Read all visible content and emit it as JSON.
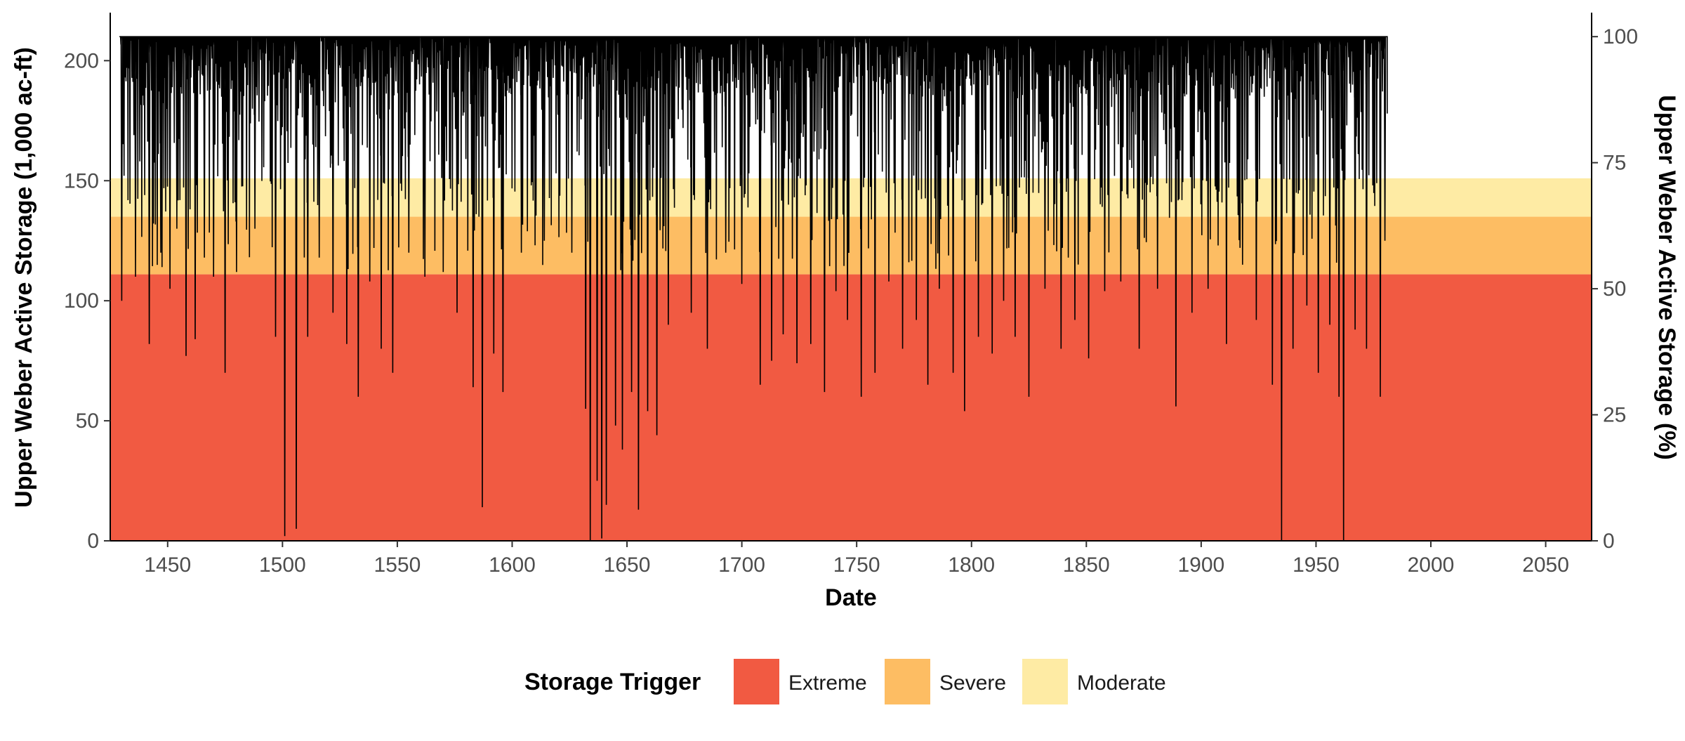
{
  "chart_data": {
    "type": "area",
    "xlabel": "Date",
    "ylabel": "Upper Weber Active Storage (1,000 ac-ft)",
    "y2label": "Upper Weber Active Storage (%)",
    "xlim": [
      1425,
      2070
    ],
    "ylim": [
      0,
      220
    ],
    "y2lim": [
      0,
      104.76
    ],
    "x_ticks": [
      1450,
      1500,
      1550,
      1600,
      1650,
      1700,
      1750,
      1800,
      1850,
      1900,
      1950,
      2000,
      2050
    ],
    "y_ticks": [
      0,
      50,
      100,
      150,
      200
    ],
    "y2_ticks": [
      0,
      25,
      50,
      75,
      100
    ],
    "grid": false,
    "legend_position": "bottom",
    "legend": {
      "title": "Storage Trigger",
      "items": [
        {
          "label": "Extreme",
          "color": "#F15A42"
        },
        {
          "label": "Severe",
          "color": "#FDBD63"
        },
        {
          "label": "Moderate",
          "color": "#FEEBA4"
        }
      ]
    },
    "bands": [
      {
        "name": "Extreme",
        "from": 0,
        "to": 111,
        "color": "#F15A42"
      },
      {
        "name": "Severe",
        "from": 111,
        "to": 135,
        "color": "#FDBD63"
      },
      {
        "name": "Moderate",
        "from": 135,
        "to": 151,
        "color": "#FEEBA4"
      }
    ],
    "series": [
      {
        "type": "line",
        "color": "#000000",
        "x_range": [
          1429,
          1981
        ],
        "max_value": 210,
        "troughs": [
          {
            "x": 1430,
            "y": 100
          },
          {
            "x": 1436,
            "y": 110
          },
          {
            "x": 1442,
            "y": 82
          },
          {
            "x": 1447,
            "y": 120
          },
          {
            "x": 1451,
            "y": 105
          },
          {
            "x": 1454,
            "y": 130
          },
          {
            "x": 1458,
            "y": 77
          },
          {
            "x": 1462,
            "y": 84
          },
          {
            "x": 1466,
            "y": 118
          },
          {
            "x": 1470,
            "y": 110
          },
          {
            "x": 1475,
            "y": 70
          },
          {
            "x": 1480,
            "y": 112
          },
          {
            "x": 1488,
            "y": 130
          },
          {
            "x": 1497,
            "y": 85
          },
          {
            "x": 1501,
            "y": 2
          },
          {
            "x": 1506,
            "y": 5
          },
          {
            "x": 1511,
            "y": 85
          },
          {
            "x": 1516,
            "y": 118
          },
          {
            "x": 1522,
            "y": 95
          },
          {
            "x": 1528,
            "y": 82
          },
          {
            "x": 1533,
            "y": 60
          },
          {
            "x": 1538,
            "y": 108
          },
          {
            "x": 1543,
            "y": 80
          },
          {
            "x": 1548,
            "y": 70
          },
          {
            "x": 1555,
            "y": 120
          },
          {
            "x": 1562,
            "y": 110
          },
          {
            "x": 1570,
            "y": 112
          },
          {
            "x": 1576,
            "y": 95
          },
          {
            "x": 1583,
            "y": 64
          },
          {
            "x": 1587,
            "y": 14
          },
          {
            "x": 1592,
            "y": 78
          },
          {
            "x": 1596,
            "y": 62
          },
          {
            "x": 1604,
            "y": 120
          },
          {
            "x": 1614,
            "y": 125
          },
          {
            "x": 1626,
            "y": 120
          },
          {
            "x": 1632,
            "y": 55
          },
          {
            "x": 1634,
            "y": 0
          },
          {
            "x": 1637,
            "y": 25
          },
          {
            "x": 1639,
            "y": 1
          },
          {
            "x": 1641,
            "y": 15
          },
          {
            "x": 1645,
            "y": 48
          },
          {
            "x": 1648,
            "y": 38
          },
          {
            "x": 1652,
            "y": 62
          },
          {
            "x": 1655,
            "y": 13
          },
          {
            "x": 1659,
            "y": 54
          },
          {
            "x": 1663,
            "y": 44
          },
          {
            "x": 1668,
            "y": 90
          },
          {
            "x": 1678,
            "y": 95
          },
          {
            "x": 1685,
            "y": 80
          },
          {
            "x": 1693,
            "y": 120
          },
          {
            "x": 1700,
            "y": 107
          },
          {
            "x": 1708,
            "y": 65
          },
          {
            "x": 1713,
            "y": 75
          },
          {
            "x": 1718,
            "y": 86
          },
          {
            "x": 1724,
            "y": 74
          },
          {
            "x": 1730,
            "y": 82
          },
          {
            "x": 1736,
            "y": 62
          },
          {
            "x": 1741,
            "y": 104
          },
          {
            "x": 1746,
            "y": 92
          },
          {
            "x": 1752,
            "y": 60
          },
          {
            "x": 1758,
            "y": 70
          },
          {
            "x": 1764,
            "y": 108
          },
          {
            "x": 1770,
            "y": 80
          },
          {
            "x": 1776,
            "y": 92
          },
          {
            "x": 1781,
            "y": 65
          },
          {
            "x": 1786,
            "y": 105
          },
          {
            "x": 1792,
            "y": 70
          },
          {
            "x": 1797,
            "y": 54
          },
          {
            "x": 1803,
            "y": 85
          },
          {
            "x": 1809,
            "y": 78
          },
          {
            "x": 1814,
            "y": 100
          },
          {
            "x": 1819,
            "y": 85
          },
          {
            "x": 1825,
            "y": 60
          },
          {
            "x": 1832,
            "y": 105
          },
          {
            "x": 1839,
            "y": 80
          },
          {
            "x": 1845,
            "y": 92
          },
          {
            "x": 1851,
            "y": 76
          },
          {
            "x": 1858,
            "y": 104
          },
          {
            "x": 1865,
            "y": 108
          },
          {
            "x": 1873,
            "y": 80
          },
          {
            "x": 1881,
            "y": 105
          },
          {
            "x": 1889,
            "y": 56
          },
          {
            "x": 1896,
            "y": 95
          },
          {
            "x": 1903,
            "y": 105
          },
          {
            "x": 1911,
            "y": 82
          },
          {
            "x": 1918,
            "y": 115
          },
          {
            "x": 1924,
            "y": 92
          },
          {
            "x": 1931,
            "y": 65
          },
          {
            "x": 1935,
            "y": 0
          },
          {
            "x": 1940,
            "y": 80
          },
          {
            "x": 1946,
            "y": 98
          },
          {
            "x": 1951,
            "y": 70
          },
          {
            "x": 1956,
            "y": 90
          },
          {
            "x": 1960,
            "y": 60
          },
          {
            "x": 1962,
            "y": 0
          },
          {
            "x": 1967,
            "y": 88
          },
          {
            "x": 1972,
            "y": 80
          },
          {
            "x": 1978,
            "y": 60
          },
          {
            "x": 1980,
            "y": 125
          }
        ]
      }
    ]
  }
}
